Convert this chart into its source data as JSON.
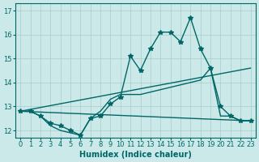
{
  "xlabel": "Humidex (Indice chaleur)",
  "ylabel": "",
  "background_color": "#cce9e9",
  "grid_color": "#aacccc",
  "line_color": "#006666",
  "xlim": [
    -0.5,
    23.5
  ],
  "ylim": [
    11.7,
    17.3
  ],
  "yticks": [
    12,
    13,
    14,
    15,
    16,
    17
  ],
  "xticks": [
    0,
    1,
    2,
    3,
    4,
    5,
    6,
    7,
    8,
    9,
    10,
    11,
    12,
    13,
    14,
    15,
    16,
    17,
    18,
    19,
    20,
    21,
    22,
    23
  ],
  "line1_x": [
    0,
    1,
    2,
    3,
    4,
    5,
    6,
    7,
    8,
    9,
    10,
    11,
    12,
    13,
    14,
    15,
    16,
    17,
    18,
    19,
    20,
    21,
    22,
    23
  ],
  "line1_y": [
    12.8,
    12.8,
    12.6,
    12.3,
    12.2,
    12.0,
    11.8,
    12.5,
    12.6,
    13.1,
    13.4,
    15.1,
    14.5,
    15.4,
    16.1,
    16.1,
    15.7,
    16.7,
    15.4,
    14.6,
    13.0,
    12.6,
    12.4,
    12.4
  ],
  "line2_x": [
    0,
    1,
    2,
    3,
    4,
    5,
    6,
    7,
    8,
    9,
    10,
    11,
    12,
    13,
    14,
    15,
    16,
    17,
    18,
    19,
    20,
    21,
    22,
    23
  ],
  "line2_y": [
    12.8,
    12.8,
    12.6,
    12.2,
    12.0,
    11.9,
    11.8,
    12.5,
    12.8,
    13.3,
    13.5,
    13.5,
    13.5,
    13.6,
    13.7,
    13.8,
    13.9,
    14.0,
    14.1,
    14.6,
    12.6,
    12.6,
    12.4,
    12.4
  ],
  "line3_x": [
    0,
    23
  ],
  "line3_y": [
    12.8,
    14.6
  ],
  "line4_x": [
    0,
    23
  ],
  "line4_y": [
    12.8,
    12.4
  ]
}
